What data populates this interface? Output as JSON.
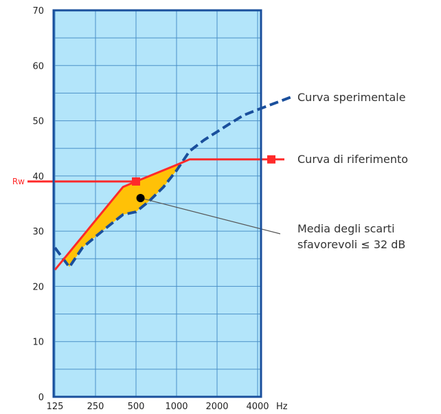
{
  "chart_data": {
    "type": "line",
    "x_ticks": [
      "125",
      "250",
      "500",
      "1000",
      "2000",
      "4000"
    ],
    "x_unit": "Hz",
    "y_ticks": [
      0,
      10,
      20,
      30,
      40,
      50,
      60,
      70
    ],
    "ylim": [
      0,
      70
    ],
    "grid": true,
    "grid_minor_y_step": 5,
    "series": [
      {
        "name": "Curva sperimentale",
        "style": "dashed",
        "color": "#1a4f9c",
        "points": [
          {
            "x": 125,
            "y": 27
          },
          {
            "x": 160,
            "y": 23.5
          },
          {
            "x": 200,
            "y": 27
          },
          {
            "x": 250,
            "y": 29
          },
          {
            "x": 315,
            "y": 31
          },
          {
            "x": 400,
            "y": 33
          },
          {
            "x": 500,
            "y": 33.5
          },
          {
            "x": 630,
            "y": 35.5
          },
          {
            "x": 800,
            "y": 38
          },
          {
            "x": 1000,
            "y": 41
          },
          {
            "x": 1250,
            "y": 44.5
          },
          {
            "x": 1600,
            "y": 46.5
          },
          {
            "x": 2000,
            "y": 48
          },
          {
            "x": 2500,
            "y": 49.5
          },
          {
            "x": 3150,
            "y": 51
          },
          {
            "x": 4000,
            "y": 52
          }
        ]
      },
      {
        "name": "Curva di riferimento",
        "style": "solid",
        "color": "#ff2a2a",
        "points": [
          {
            "x": 125,
            "y": 23
          },
          {
            "x": 400,
            "y": 38
          },
          {
            "x": 500,
            "y": 39
          },
          {
            "x": 1000,
            "y": 42
          },
          {
            "x": 1250,
            "y": 43
          },
          {
            "x": 4000,
            "y": 43
          }
        ]
      }
    ],
    "rw": {
      "label": "Rw",
      "value": 39,
      "x": 500
    },
    "mean_point": {
      "x": 540,
      "y": 36
    },
    "annotations": [
      {
        "text": "Curva sperimentale"
      },
      {
        "text": "Curva di riferimento"
      },
      {
        "lines": [
          "Media degli scarti",
          "sfavorevoli ≤ 32 dB"
        ]
      }
    ],
    "colors": {
      "plot_bg": "#b3e5fa",
      "grid": "#4a90c8",
      "frame": "#1a4f9c",
      "fill": "#ffc107",
      "reference": "#ff2a2a",
      "experimental": "#1a4f9c"
    }
  }
}
